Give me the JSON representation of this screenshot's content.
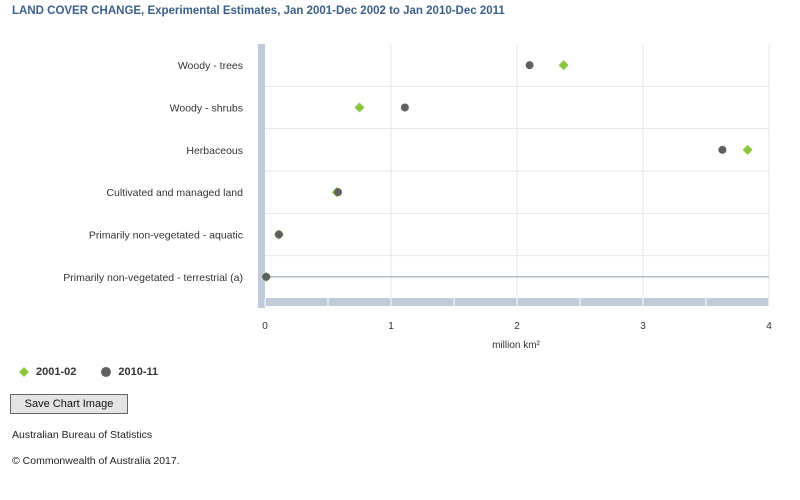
{
  "title": "LAND COVER CHANGE, Experimental Estimates, Jan 2001-Dec 2002 to Jan 2010-Dec 2011",
  "button_label": "Save Chart Image",
  "source": "Australian Bureau of Statistics",
  "copyright": "© Commonwealth of Australia 2017.",
  "colors": {
    "series_2001": "#8cc63f",
    "series_2010": "#606060",
    "axis_band": "#c0ccda"
  },
  "chart_data": {
    "type": "scatter",
    "categories": [
      "Woody - trees",
      "Woody - shrubs",
      "Herbaceous",
      "Cultivated and managed land",
      "Primarily non-vegetated - aquatic",
      "Primarily non-vegetated - terrestrial (a)"
    ],
    "series": [
      {
        "name": "2001-02",
        "marker": "diamond",
        "values": [
          2.37,
          0.75,
          3.83,
          0.57,
          0.11,
          0.01
        ]
      },
      {
        "name": "2010-11",
        "marker": "circle",
        "values": [
          2.1,
          1.11,
          3.63,
          0.58,
          0.11,
          0.01
        ]
      }
    ],
    "xlabel": "million km²",
    "xlim": [
      0,
      4
    ],
    "xticks": [
      "0",
      "1",
      "2",
      "3",
      "4"
    ],
    "legend": "bottom-left",
    "grid": true
  }
}
